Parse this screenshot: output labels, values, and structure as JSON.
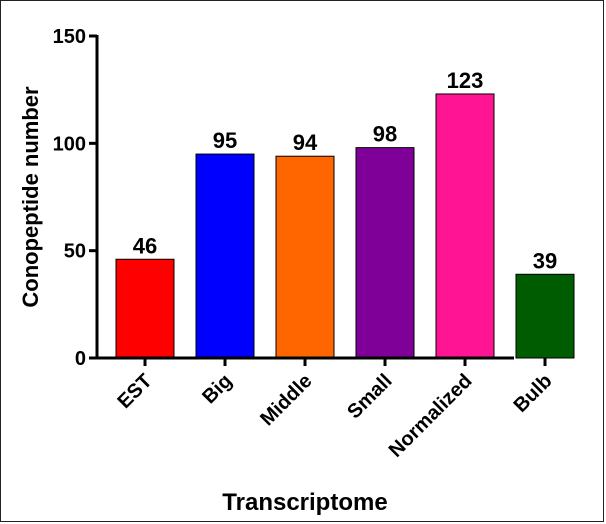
{
  "chart_data": {
    "type": "bar",
    "title": "",
    "xlabel": "Transcriptome",
    "ylabel": "Conopeptide number",
    "ylim": [
      0,
      150
    ],
    "yticks": [
      0,
      50,
      100,
      150
    ],
    "grid": false,
    "categories": [
      "EST",
      "Big",
      "Middle",
      "Small",
      "Normalized",
      "Bulb"
    ],
    "values": [
      46,
      95,
      94,
      98,
      123,
      39
    ],
    "data_labels": [
      "46",
      "95",
      "94",
      "98",
      "123",
      "39"
    ],
    "colors": [
      "#ff0000",
      "#0000ff",
      "#ff6600",
      "#7f0099",
      "#ff1493",
      "#005c00"
    ]
  }
}
